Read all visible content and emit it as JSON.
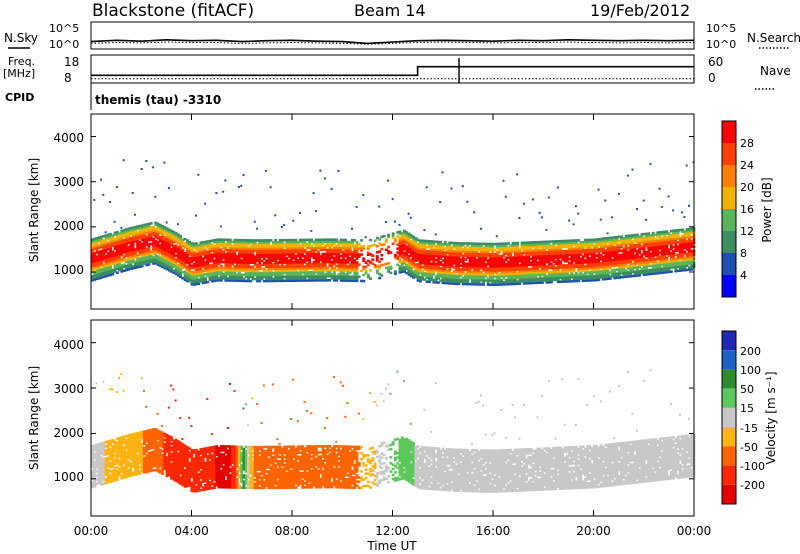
{
  "chart_data": [
    {
      "type": "header",
      "station_title": "Blackstone (fitACF)",
      "beam_label": "Beam 14",
      "date_label": "19/Feb/2012"
    },
    {
      "type": "line",
      "panel": "noise",
      "left_label": "N.Sky",
      "right_label": "N.Search",
      "left_ticks": [
        "10^5",
        "10^0"
      ],
      "right_ticks": [
        "10^5",
        "10^0"
      ],
      "x": [
        0,
        1,
        2,
        3,
        4,
        5,
        6,
        7,
        8,
        9,
        10,
        11,
        12,
        13,
        14,
        15,
        16,
        17,
        18,
        19,
        20,
        21,
        22,
        23,
        24
      ],
      "noise_sky_log10": [
        1.0,
        1.3,
        1.1,
        1.4,
        1.2,
        1.3,
        1.0,
        1.2,
        1.3,
        1.1,
        1.0,
        0.6,
        0.9,
        1.2,
        1.3,
        1.2,
        1.1,
        1.3,
        1.2,
        1.4,
        1.3,
        1.2,
        1.3,
        1.2,
        1.3
      ],
      "noise_search_log10": [
        0.6,
        0.8,
        0.7,
        0.9,
        0.8,
        0.8,
        0.6,
        0.7,
        0.8,
        0.7,
        0.6,
        0.4,
        0.6,
        0.8,
        0.9,
        0.8,
        0.7,
        0.8,
        0.8,
        0.9,
        0.8,
        0.7,
        0.8,
        0.7,
        0.8
      ]
    },
    {
      "type": "line",
      "panel": "frequency",
      "left_label_line1": "Freq.",
      "left_label_line2": "[MHz]",
      "cpid_label": "CPID",
      "right_label": "Nave",
      "left_ticks": [
        "18",
        "8"
      ],
      "right_ticks": [
        "60",
        "0"
      ],
      "freq_steps": [
        {
          "t": 0.0,
          "f": 10.5
        },
        {
          "t": 0.05,
          "f": 10.5
        },
        {
          "t": 13.0,
          "f": 14.2
        },
        {
          "t": 24.0,
          "f": 14.2
        }
      ],
      "nave_line": 6,
      "cpid_text": "themis (tau) -3310"
    },
    {
      "type": "heatmap",
      "panel": "power",
      "ylabel": "Slant Range [km]",
      "y_ticks": [
        "1000",
        "2000",
        "3000",
        "4000"
      ],
      "ylim": [
        180,
        4500
      ],
      "color_label": "Power [dB]",
      "scale_ticks": [
        "4",
        "8",
        "12",
        "16",
        "20",
        "24",
        "28"
      ],
      "scale_colors": [
        "#0000ff",
        "#1e50b4",
        "#3c8c64",
        "#5ab45a",
        "#f0b400",
        "#ff8000",
        "#ff4000",
        "#ff0000"
      ],
      "band_center_km": [
        {
          "t": 0.0,
          "r": 1300
        },
        {
          "t": 1.5,
          "r": 1550
        },
        {
          "t": 2.5,
          "r": 1680
        },
        {
          "t": 3.3,
          "r": 1450
        },
        {
          "t": 4.0,
          "r": 1200
        },
        {
          "t": 5.0,
          "r": 1300
        },
        {
          "t": 6.5,
          "r": 1280
        },
        {
          "t": 9.5,
          "r": 1300
        },
        {
          "t": 11.0,
          "r": 1280
        },
        {
          "t": 12.4,
          "r": 1500
        },
        {
          "t": 13.0,
          "r": 1280
        },
        {
          "t": 14.5,
          "r": 1220
        },
        {
          "t": 16.0,
          "r": 1200
        },
        {
          "t": 20.0,
          "r": 1300
        },
        {
          "t": 24.0,
          "r": 1550
        }
      ]
    },
    {
      "type": "heatmap",
      "panel": "velocity",
      "ylabel": "Slant Range [km]",
      "y_ticks": [
        "1000",
        "2000",
        "3000",
        "4000"
      ],
      "ylim": [
        180,
        4500
      ],
      "xlabel": "Time UT",
      "x_ticks": [
        "00:00",
        "04:00",
        "08:00",
        "12:00",
        "16:00",
        "20:00",
        "00:00"
      ],
      "color_label": "Velocity [m s⁻¹]",
      "scale_ticks": [
        "200",
        "100",
        "50",
        "15",
        "-15",
        "-50",
        "-100",
        "-200"
      ],
      "scale_colors": [
        "#1e28b4",
        "#1e64c8",
        "#2d8c2d",
        "#5ac85a",
        "#c8c8c8",
        "#ffb414",
        "#ff6400",
        "#ff2800",
        "#e60000"
      ],
      "velocity_by_time_m_s": [
        {
          "t": 0.0,
          "v": -5
        },
        {
          "t": 2.5,
          "v": -60
        },
        {
          "t": 3.3,
          "v": -150
        },
        {
          "t": 5.5,
          "v": -220
        },
        {
          "t": 6.0,
          "v": 60
        },
        {
          "t": 6.5,
          "v": -70
        },
        {
          "t": 10.5,
          "v": -60
        },
        {
          "t": 12.4,
          "v": 50
        },
        {
          "t": 13.0,
          "v": -5
        },
        {
          "t": 24.0,
          "v": -5
        }
      ]
    }
  ]
}
